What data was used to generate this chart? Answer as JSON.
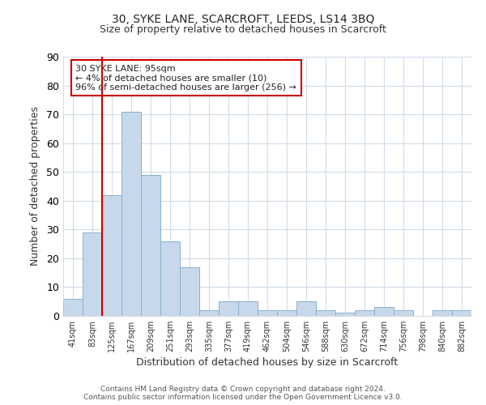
{
  "title1": "30, SYKE LANE, SCARCROFT, LEEDS, LS14 3BQ",
  "title2": "Size of property relative to detached houses in Scarcroft",
  "xlabel": "Distribution of detached houses by size in Scarcroft",
  "ylabel": "Number of detached properties",
  "footer1": "Contains HM Land Registry data © Crown copyright and database right 2024.",
  "footer2": "Contains public sector information licensed under the Open Government Licence v3.0.",
  "annotation_title": "30 SYKE LANE: 95sqm",
  "annotation_line1": "← 4% of detached houses are smaller (10)",
  "annotation_line2": "96% of semi-detached houses are larger (256) →",
  "bar_color": "#c8d8eb",
  "bar_edge_color": "#8ab0cc",
  "vline_color": "#cc0000",
  "annotation_box_color": "#ffffff",
  "annotation_box_edge": "#cc0000",
  "categories": [
    "41sqm",
    "83sqm",
    "125sqm",
    "167sqm",
    "209sqm",
    "251sqm",
    "293sqm",
    "335sqm",
    "377sqm",
    "419sqm",
    "462sqm",
    "504sqm",
    "546sqm",
    "588sqm",
    "630sqm",
    "672sqm",
    "714sqm",
    "756sqm",
    "798sqm",
    "840sqm",
    "882sqm"
  ],
  "values": [
    6,
    29,
    42,
    71,
    49,
    26,
    17,
    2,
    5,
    5,
    2,
    2,
    5,
    2,
    1,
    2,
    3,
    2,
    0,
    2,
    2
  ],
  "vline_x": 1.5,
  "ylim": [
    0,
    90
  ],
  "yticks": [
    0,
    10,
    20,
    30,
    40,
    50,
    60,
    70,
    80,
    90
  ],
  "bg_color": "#ffffff",
  "grid_color": "#d0dce8"
}
